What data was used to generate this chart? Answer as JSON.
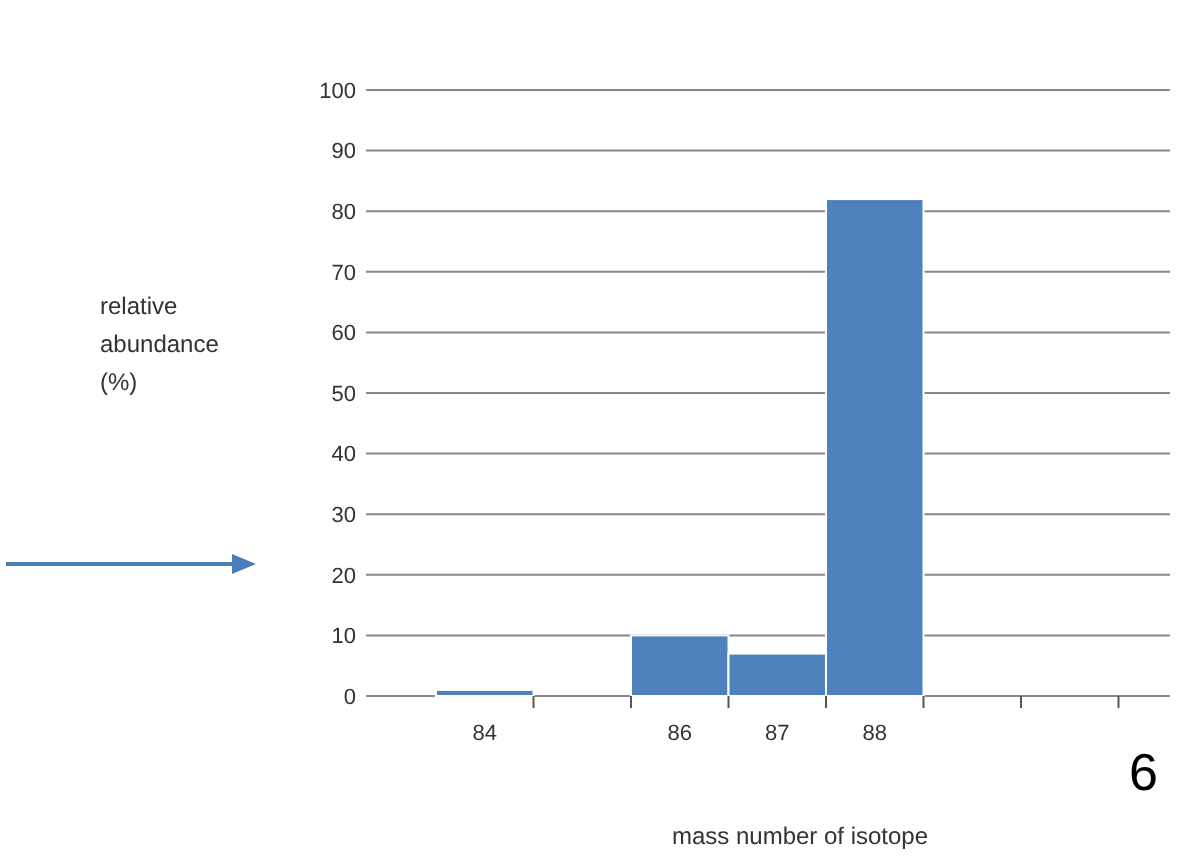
{
  "chart_data": {
    "type": "bar",
    "xlabel": "mass number of isotope",
    "ylabel": "relative abundance (%)",
    "categories": [
      "84",
      null,
      "86",
      "87",
      "88",
      null,
      null,
      null
    ],
    "values": [
      1,
      null,
      10,
      7,
      82,
      null,
      null,
      null
    ],
    "color": "#4f81bd",
    "ylim": [
      0,
      100
    ],
    "yticks": [
      0,
      10,
      20,
      30,
      40,
      50,
      60,
      70,
      80,
      90,
      100
    ],
    "grid": "y",
    "annotations": [
      "6"
    ]
  }
}
